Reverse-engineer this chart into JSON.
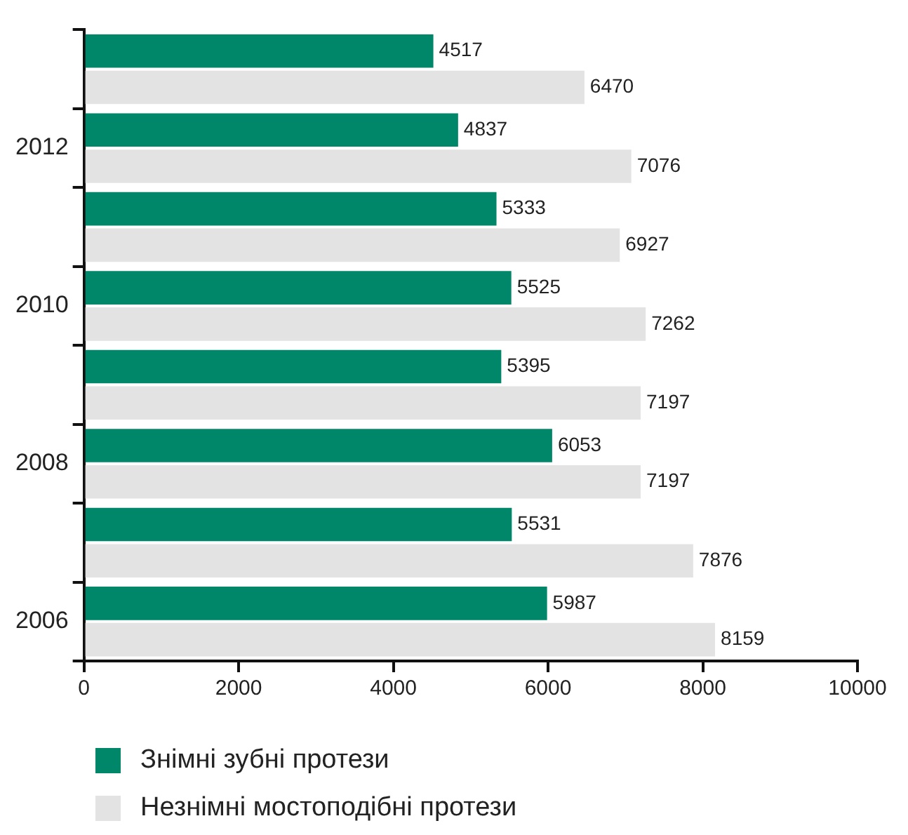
{
  "chart_data": {
    "type": "bar",
    "orientation": "horizontal",
    "categories": [
      null,
      "2012",
      null,
      "2010",
      null,
      "2008",
      null,
      "2006"
    ],
    "series": [
      {
        "name": "Знімні зубні протези",
        "color": "#00876a",
        "values": [
          4517,
          4837,
          5333,
          5525,
          5395,
          6053,
          5531,
          5987
        ]
      },
      {
        "name": "Незнімні мостоподібні протези",
        "color": "#e3e3e3",
        "values": [
          6470,
          7076,
          6927,
          7262,
          7197,
          7197,
          7876,
          8159
        ]
      }
    ],
    "xlim": [
      0,
      10000
    ],
    "xticks": [
      0,
      2000,
      4000,
      6000,
      8000,
      10000
    ],
    "grid": false,
    "legend": "bottom left",
    "data_labels": true
  }
}
